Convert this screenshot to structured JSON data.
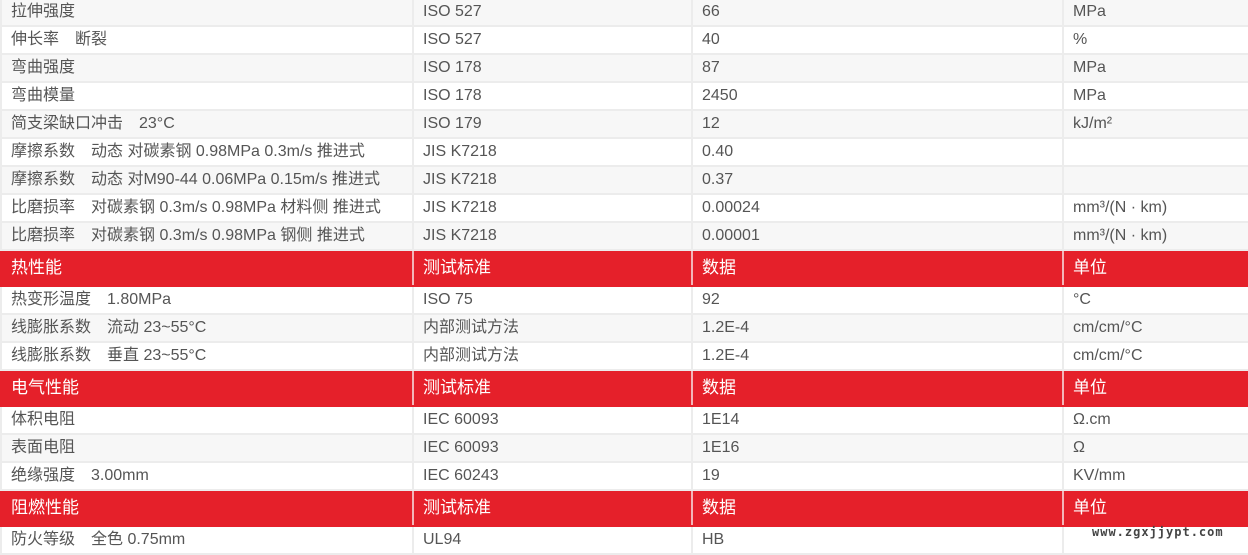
{
  "sections": [
    {
      "header": null,
      "rows": [
        [
          "拉伸强度",
          "ISO 527",
          "66",
          "MPa"
        ],
        [
          "伸长率　断裂",
          "ISO 527",
          "40",
          "%"
        ],
        [
          "弯曲强度",
          "ISO 178",
          "87",
          "MPa"
        ],
        [
          "弯曲模量",
          "ISO 178",
          "2450",
          "MPa"
        ],
        [
          "简支梁缺口冲击　23°C",
          "ISO 179",
          "12",
          "kJ/m²"
        ],
        [
          "摩擦系数　动态 对碳素钢 0.98MPa 0.3m/s 推进式",
          "JIS K7218",
          "0.40",
          ""
        ],
        [
          "摩擦系数　动态 对M90-44 0.06MPa 0.15m/s 推进式",
          "JIS K7218",
          "0.37",
          ""
        ],
        [
          "比磨损率　对碳素钢 0.3m/s 0.98MPa 材料侧 推进式",
          "JIS K7218",
          "0.00024",
          "mm³/(N · km)"
        ],
        [
          "比磨损率　对碳素钢 0.3m/s 0.98MPa 钢侧 推进式",
          "JIS K7218",
          "0.00001",
          "mm³/(N · km)"
        ]
      ]
    },
    {
      "header": [
        "热性能",
        "测试标准",
        "数据",
        "单位"
      ],
      "rows": [
        [
          "热变形温度　1.80MPa",
          "ISO 75",
          "92",
          "°C"
        ],
        [
          "线膨胀系数　流动 23~55°C",
          "内部测试方法",
          "1.2E-4",
          "cm/cm/°C"
        ],
        [
          "线膨胀系数　垂直 23~55°C",
          "内部测试方法",
          "1.2E-4",
          "cm/cm/°C"
        ]
      ]
    },
    {
      "header": [
        "电气性能",
        "测试标准",
        "数据",
        "单位"
      ],
      "rows": [
        [
          "体积电阻",
          "IEC 60093",
          "1E14",
          "Ω.cm"
        ],
        [
          "表面电阻",
          "IEC 60093",
          "1E16",
          "Ω"
        ],
        [
          "绝缘强度　3.00mm",
          "IEC 60243",
          "19",
          "KV/mm"
        ]
      ]
    },
    {
      "header": [
        "阻燃性能",
        "测试标准",
        "数据",
        "单位"
      ],
      "rows": [
        [
          "防火等级　全色 0.75mm",
          "UL94",
          "HB",
          ""
        ]
      ]
    }
  ],
  "watermark": "www.zgxjjypt.com",
  "colors": {
    "header_bg": "#e5202a",
    "row_alt": "#f7f7f7",
    "text": "#555555"
  }
}
